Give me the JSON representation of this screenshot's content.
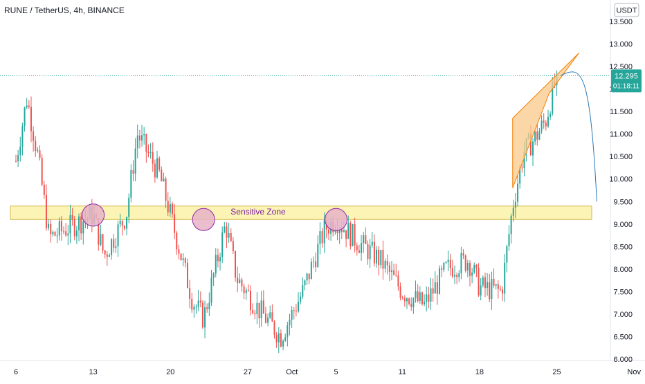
{
  "header": {
    "symbol_line": "RUNE / TetherUS, 4h, BINANCE"
  },
  "axis": {
    "currency_label": "USDT"
  },
  "price_badge": {
    "price": "12.295",
    "countdown": "01:18:11",
    "color": "#26a69a"
  },
  "zone": {
    "label": "Sensitive Zone",
    "fill": "#fbf4b4",
    "stroke": "#d4b84c",
    "text_color": "#7b1fa2"
  },
  "colors": {
    "up": "#26a69a",
    "down": "#ef5350",
    "circle_fill": "#e6b3c7",
    "circle_stroke": "#8e24aa",
    "wedge_fill": "#f9c98a",
    "wedge_stroke": "#f57c00",
    "projection": "#2979b8",
    "price_line": "#26a69a"
  },
  "chart_data": {
    "type": "candlestick",
    "title": "RUNE / TetherUS, 4h, BINANCE",
    "ylim": [
      6.0,
      13.5
    ],
    "y_ticks": [
      "13.500",
      "13.000",
      "12.500",
      "12.000",
      "11.500",
      "11.000",
      "10.500",
      "10.000",
      "9.500",
      "9.000",
      "8.500",
      "8.000",
      "7.500",
      "7.000",
      "6.500",
      "6.000"
    ],
    "x_ticks": [
      "6",
      "13",
      "20",
      "27",
      "Oct",
      "5",
      "11",
      "18",
      "25",
      "Nov"
    ],
    "last_price": 12.295,
    "sensitive_zone": {
      "low": 9.1,
      "high": 9.4
    },
    "candle_count": 250,
    "anchor_closes": [
      {
        "date": "Sep 6",
        "close": 10.4
      },
      {
        "date": "Sep 7",
        "close": 11.8
      },
      {
        "date": "Sep 8",
        "close": 10.5
      },
      {
        "date": "Sep 9",
        "close": 8.7
      },
      {
        "date": "Sep 13",
        "close": 9.2
      },
      {
        "date": "Sep 14",
        "close": 8.3
      },
      {
        "date": "Sep 16",
        "close": 9.2
      },
      {
        "date": "Sep 17",
        "close": 11.0
      },
      {
        "date": "Sep 19",
        "close": 10.1
      },
      {
        "date": "Sep 20",
        "close": 9.2
      },
      {
        "date": "Sep 22",
        "close": 7.3
      },
      {
        "date": "Sep 23",
        "close": 6.9
      },
      {
        "date": "Sep 25",
        "close": 9.0
      },
      {
        "date": "Sep 26",
        "close": 7.8
      },
      {
        "date": "Sep 28",
        "close": 7.1
      },
      {
        "date": "Sep 30",
        "close": 6.5
      },
      {
        "date": "Oct 2",
        "close": 7.5
      },
      {
        "date": "Oct 4",
        "close": 8.9
      },
      {
        "date": "Oct 5",
        "close": 9.1
      },
      {
        "date": "Oct 7",
        "close": 8.6
      },
      {
        "date": "Oct 9",
        "close": 8.2
      },
      {
        "date": "Oct 11",
        "close": 7.5
      },
      {
        "date": "Oct 13",
        "close": 7.2
      },
      {
        "date": "Oct 15",
        "close": 8.0
      },
      {
        "date": "Oct 17",
        "close": 8.2
      },
      {
        "date": "Oct 18",
        "close": 7.6
      },
      {
        "date": "Oct 20",
        "close": 7.5
      },
      {
        "date": "Oct 21",
        "close": 9.4
      },
      {
        "date": "Oct 22",
        "close": 10.6
      },
      {
        "date": "Oct 23",
        "close": 10.9
      },
      {
        "date": "Oct 24",
        "close": 11.3
      },
      {
        "date": "Oct 25",
        "close": 12.3
      }
    ],
    "annotations": [
      {
        "type": "highlight-circle",
        "date": "Sep 13",
        "price": 9.2
      },
      {
        "type": "highlight-circle",
        "date": "Sep 23",
        "price": 9.1
      },
      {
        "type": "highlight-circle",
        "date": "Oct 5",
        "price": 9.1
      },
      {
        "type": "rising-wedge",
        "from": "Oct 21",
        "to": "Oct 26",
        "upper": [
          11.35,
          12.8
        ],
        "lower": [
          9.8,
          11.9
        ]
      },
      {
        "type": "projection-curve",
        "from": {
          "date": "Oct 25",
          "price": 12.3
        },
        "to": {
          "date": "Oct 28",
          "price": 9.5
        }
      }
    ]
  }
}
